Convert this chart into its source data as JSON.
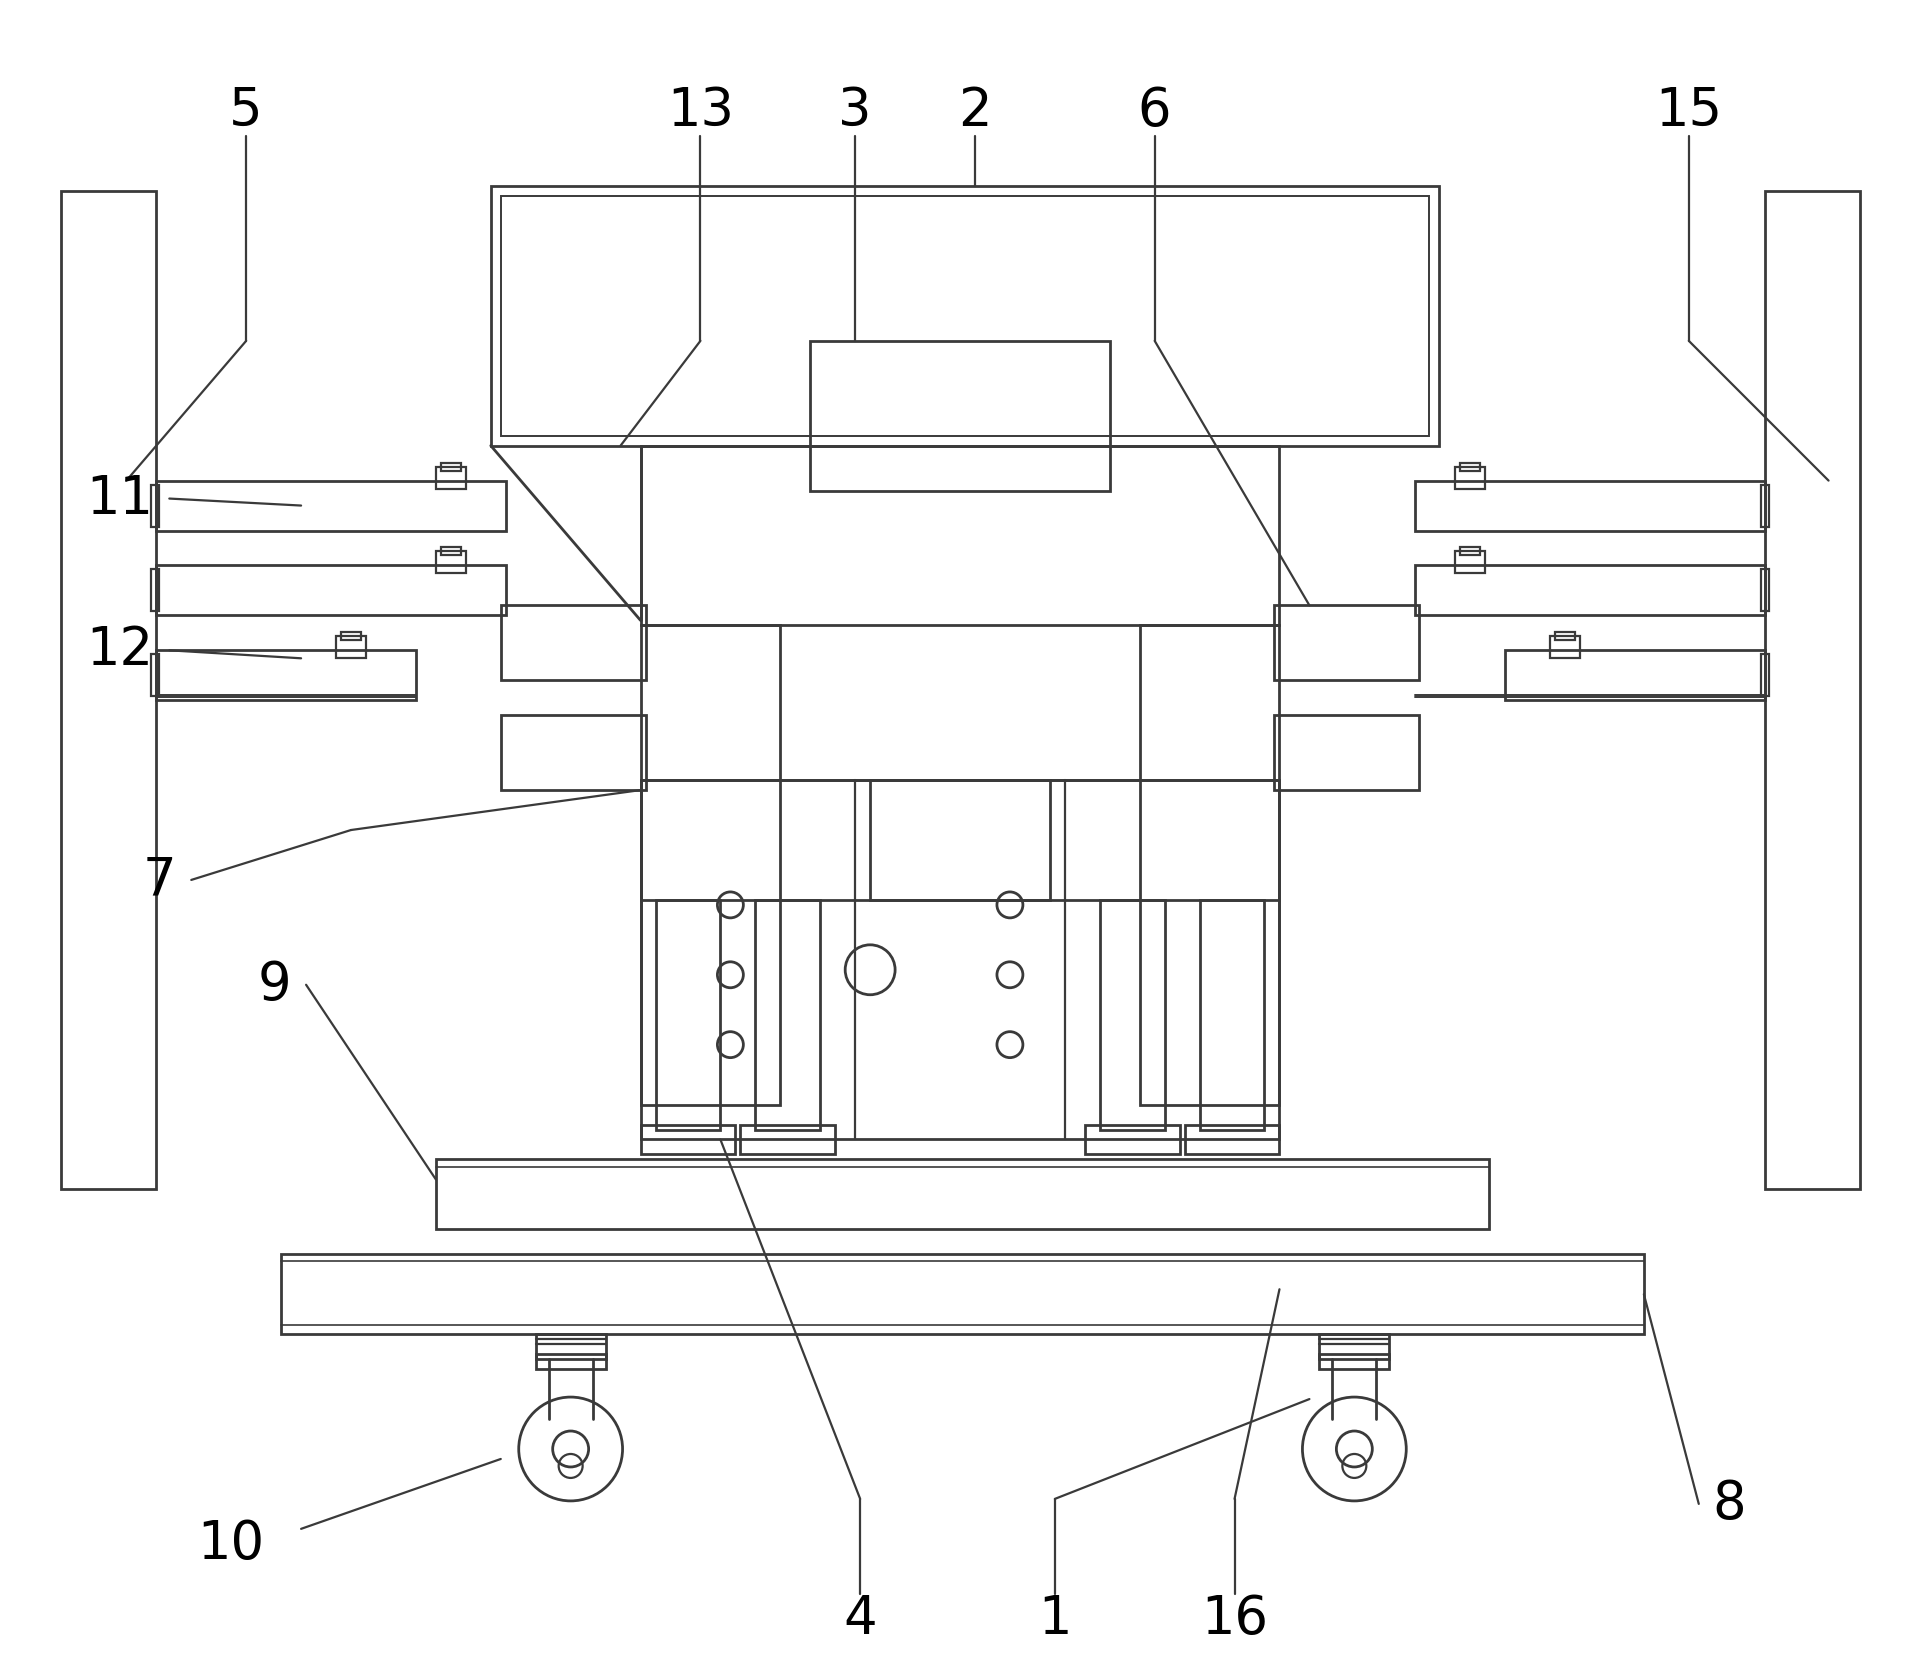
{
  "bg_color": "#ffffff",
  "line_color": "#3a3a3a",
  "line_width": 2.0,
  "figsize": [
    19.21,
    16.76
  ],
  "label_fontsize": 38
}
